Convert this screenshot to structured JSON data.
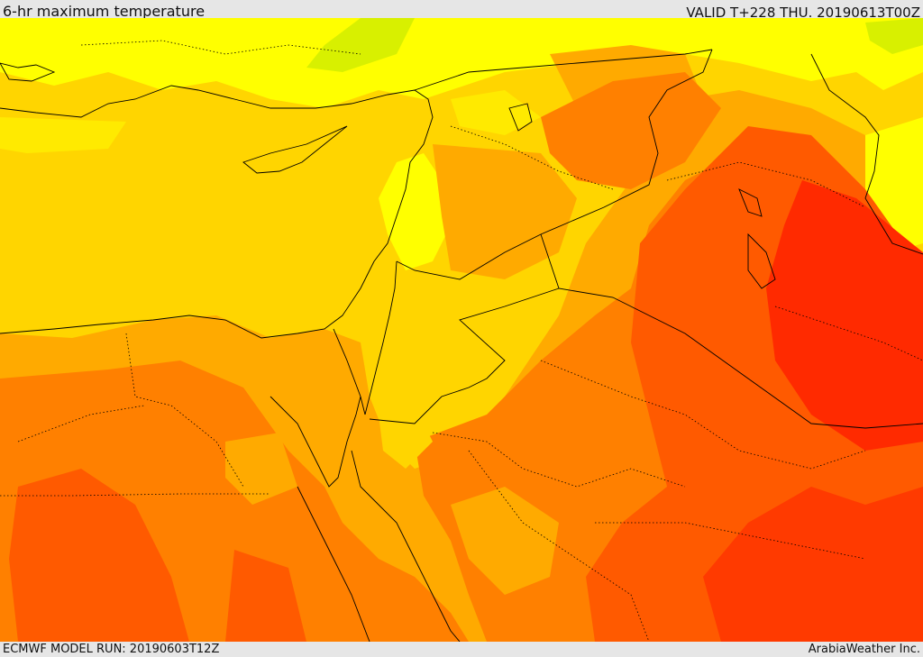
{
  "header": {
    "title": "6-hr maximum temperature",
    "valid": "VALID T+228 THU. 20190613T00Z"
  },
  "footer": {
    "model_run": "ECMWF MODEL RUN: 20190603T12Z",
    "credit": "ArabiaWeather Inc."
  },
  "map": {
    "field": "6-hr maximum temperature",
    "colors": {
      "coolest": "#ffff00",
      "cool_green": "#c8f000",
      "mild": "#ffd500",
      "warm": "#ffaa00",
      "hot": "#ff8000",
      "very_hot": "#ff5a00",
      "hottest": "#ff2a00"
    }
  }
}
